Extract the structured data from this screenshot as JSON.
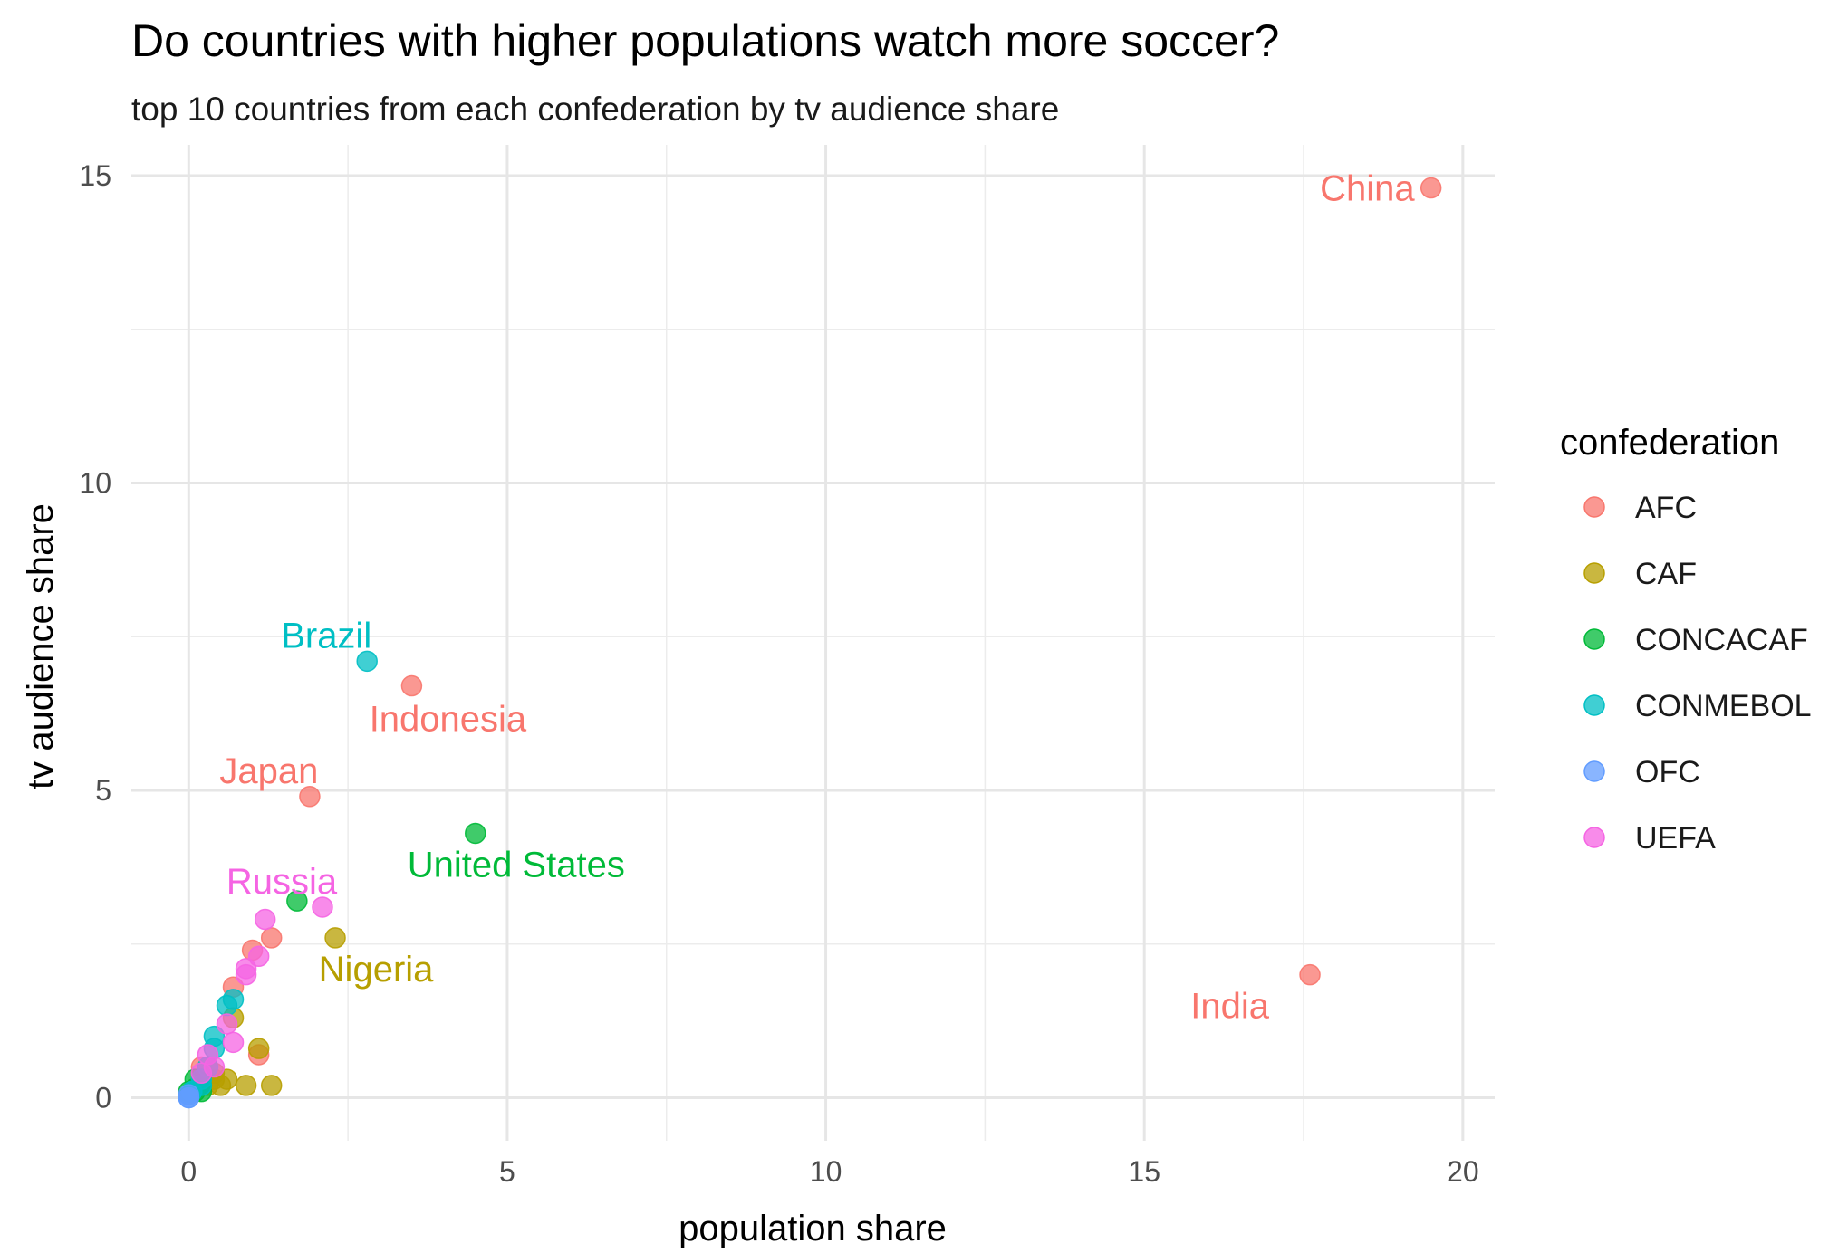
{
  "chart_data": {
    "type": "scatter",
    "title": "Do countries with higher populations watch more soccer?",
    "subtitle": "top 10 countries from each confederation by tv audience share",
    "xlabel": "population share",
    "ylabel": "tv audience share",
    "xlim": [
      -0.9,
      20.5
    ],
    "ylim": [
      -0.7,
      15.5
    ],
    "x_ticks": [
      0,
      5,
      10,
      15,
      20
    ],
    "y_ticks": [
      0,
      5,
      10,
      15
    ],
    "grid": true,
    "legend": {
      "title": "confederation",
      "position": "right",
      "entries": [
        {
          "name": "AFC",
          "color": "#F8766D"
        },
        {
          "name": "CAF",
          "color": "#B79F00"
        },
        {
          "name": "CONCACAF",
          "color": "#00BA38"
        },
        {
          "name": "CONMEBOL",
          "color": "#00BFC4"
        },
        {
          "name": "OFC",
          "color": "#619CFF"
        },
        {
          "name": "UEFA",
          "color": "#F564E3"
        }
      ]
    },
    "series": [
      {
        "name": "AFC",
        "color": "#F8766D",
        "points": [
          {
            "x": 19.5,
            "y": 14.8,
            "label": "China"
          },
          {
            "x": 17.6,
            "y": 2.0,
            "label": "India"
          },
          {
            "x": 3.5,
            "y": 6.7,
            "label": "Indonesia"
          },
          {
            "x": 1.9,
            "y": 4.9,
            "label": "Japan"
          },
          {
            "x": 1.3,
            "y": 2.6
          },
          {
            "x": 1.0,
            "y": 2.4
          },
          {
            "x": 0.7,
            "y": 1.8
          },
          {
            "x": 1.1,
            "y": 0.7
          },
          {
            "x": 0.3,
            "y": 0.5
          },
          {
            "x": 0.2,
            "y": 0.5
          }
        ]
      },
      {
        "name": "CAF",
        "color": "#B79F00",
        "points": [
          {
            "x": 2.3,
            "y": 2.6,
            "label": "Nigeria"
          },
          {
            "x": 0.7,
            "y": 1.3
          },
          {
            "x": 1.1,
            "y": 0.8
          },
          {
            "x": 0.4,
            "y": 0.4
          },
          {
            "x": 0.6,
            "y": 0.3
          },
          {
            "x": 0.9,
            "y": 0.2
          },
          {
            "x": 1.3,
            "y": 0.2
          },
          {
            "x": 0.5,
            "y": 0.2
          },
          {
            "x": 0.3,
            "y": 0.2
          },
          {
            "x": 0.4,
            "y": 0.3
          }
        ]
      },
      {
        "name": "CONCACAF",
        "color": "#00BA38",
        "points": [
          {
            "x": 4.5,
            "y": 4.3,
            "label": "United States"
          },
          {
            "x": 1.7,
            "y": 3.2
          },
          {
            "x": 0.1,
            "y": 0.3
          },
          {
            "x": 0.2,
            "y": 0.2
          },
          {
            "x": 0.1,
            "y": 0.1
          },
          {
            "x": 0.0,
            "y": 0.1
          },
          {
            "x": 0.2,
            "y": 0.1
          },
          {
            "x": 0.0,
            "y": 0.05
          },
          {
            "x": 0.1,
            "y": 0.15
          },
          {
            "x": 0.05,
            "y": 0.1
          }
        ]
      },
      {
        "name": "CONMEBOL",
        "color": "#00BFC4",
        "points": [
          {
            "x": 2.8,
            "y": 7.1,
            "label": "Brazil"
          },
          {
            "x": 0.6,
            "y": 1.5
          },
          {
            "x": 0.7,
            "y": 1.6
          },
          {
            "x": 0.4,
            "y": 1.0
          },
          {
            "x": 0.4,
            "y": 0.8
          },
          {
            "x": 0.3,
            "y": 0.5
          },
          {
            "x": 0.2,
            "y": 0.3
          },
          {
            "x": 0.2,
            "y": 0.2
          },
          {
            "x": 0.05,
            "y": 0.1
          },
          {
            "x": 0.05,
            "y": 0.1
          }
        ]
      },
      {
        "name": "OFC",
        "color": "#619CFF",
        "points": [
          {
            "x": 0.0,
            "y": 0.0
          },
          {
            "x": 0.0,
            "y": 0.05
          },
          {
            "x": 0.0,
            "y": 0.0
          }
        ]
      },
      {
        "name": "UEFA",
        "color": "#F564E3",
        "points": [
          {
            "x": 2.1,
            "y": 3.1,
            "label": "Russia"
          },
          {
            "x": 1.2,
            "y": 2.9
          },
          {
            "x": 1.1,
            "y": 2.3
          },
          {
            "x": 0.9,
            "y": 2.1
          },
          {
            "x": 0.9,
            "y": 2.0
          },
          {
            "x": 0.6,
            "y": 1.2
          },
          {
            "x": 0.7,
            "y": 0.9
          },
          {
            "x": 0.3,
            "y": 0.7
          },
          {
            "x": 0.4,
            "y": 0.5
          },
          {
            "x": 0.2,
            "y": 0.4
          }
        ]
      }
    ]
  }
}
